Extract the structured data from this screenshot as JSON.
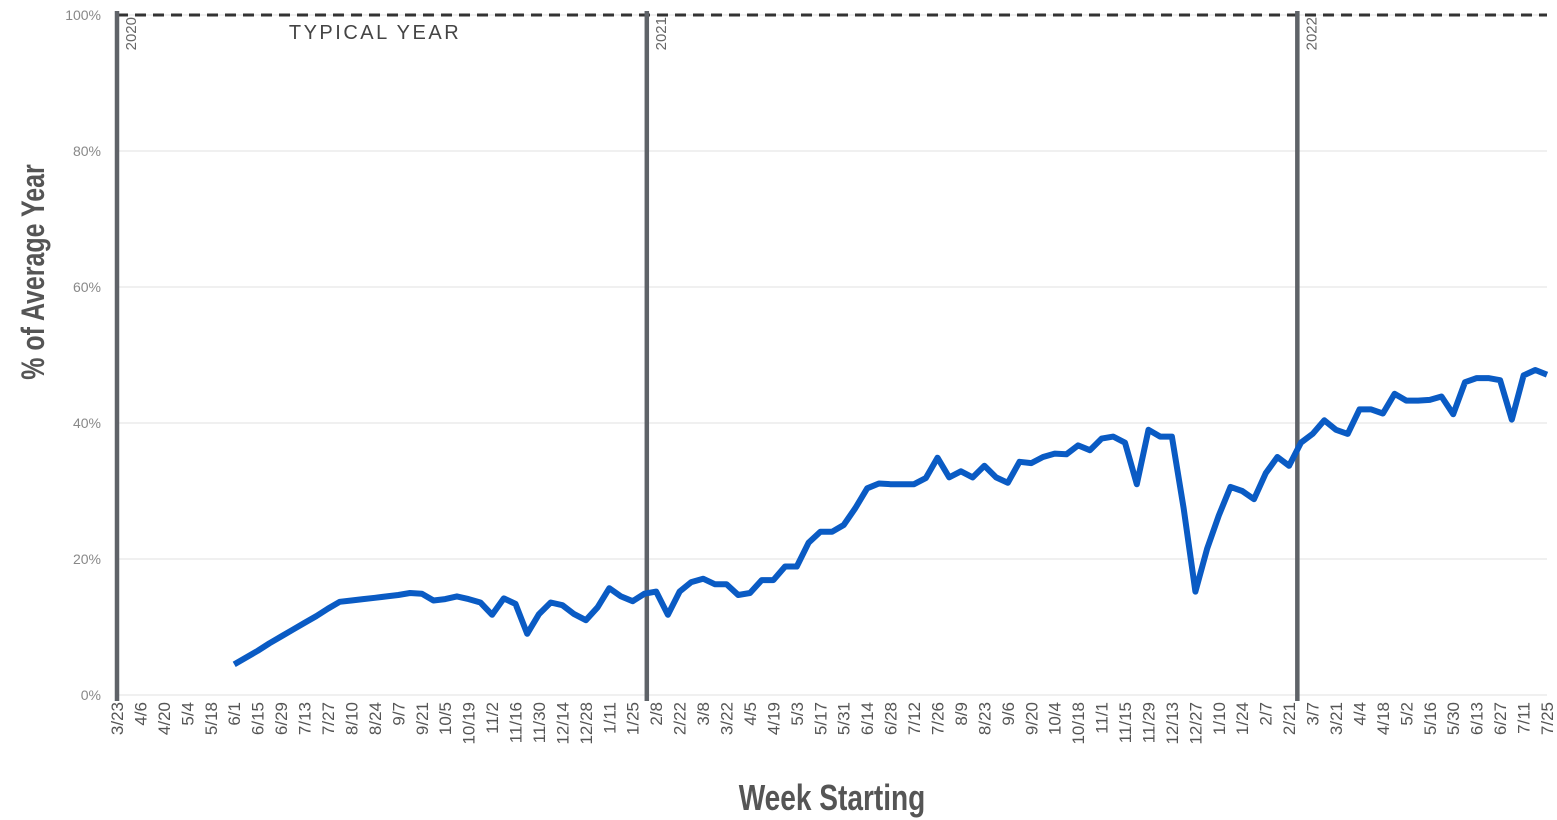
{
  "chart_data": {
    "type": "line",
    "y_label": "% of Average Year",
    "x_label": "Week Starting",
    "categories": [
      "3/23",
      null,
      "4/6",
      null,
      "4/20",
      null,
      "5/4",
      null,
      "5/18",
      null,
      "6/1",
      null,
      "6/15",
      null,
      "6/29",
      null,
      "7/13",
      null,
      "7/27",
      null,
      "8/10",
      null,
      "8/24",
      null,
      "9/7",
      null,
      "9/21",
      null,
      "10/5",
      null,
      "10/19",
      null,
      "11/2",
      null,
      "11/16",
      null,
      "11/30",
      null,
      "12/14",
      null,
      "12/28",
      null,
      "1/11",
      null,
      "1/25",
      null,
      "2/8",
      null,
      "2/22",
      null,
      "3/8",
      null,
      "3/22",
      null,
      "4/5",
      null,
      "4/19",
      null,
      "5/3",
      null,
      "5/17",
      null,
      "5/31",
      null,
      "6/14",
      null,
      "6/28",
      null,
      "7/12",
      null,
      "7/26",
      null,
      "8/9",
      null,
      "8/23",
      null,
      "9/6",
      null,
      "9/20",
      null,
      "10/4",
      null,
      "10/18",
      null,
      "11/1",
      null,
      "11/15",
      null,
      "11/29",
      null,
      "12/13",
      null,
      "12/27",
      null,
      "1/10",
      null,
      "1/24",
      null,
      "2/7",
      null,
      "2/21",
      null,
      "3/7",
      null,
      "3/21",
      null,
      "4/4",
      null,
      "4/18",
      null,
      "5/2",
      null,
      "5/16",
      null,
      "5/30",
      null,
      "6/13",
      null,
      "6/27",
      null,
      "7/11",
      null,
      "7/25"
    ],
    "series": [
      {
        "name": "% of Average Year",
        "color": "#0a5bc4",
        "values": [
          null,
          null,
          null,
          null,
          null,
          null,
          null,
          null,
          null,
          null,
          4.5,
          5.5,
          6.5,
          7.6,
          8.6,
          9.6,
          10.6,
          11.6,
          12.7,
          13.7,
          13.9,
          14.1,
          14.3,
          14.5,
          14.7,
          15.0,
          14.9,
          13.9,
          14.1,
          14.5,
          14.1,
          13.6,
          11.8,
          14.2,
          13.4,
          9.0,
          11.9,
          13.6,
          13.2,
          11.9,
          11.0,
          12.9,
          15.7,
          14.5,
          13.8,
          14.9,
          15.2,
          11.8,
          15.2,
          16.6,
          17.1,
          16.3,
          16.3,
          14.7,
          15.0,
          16.9,
          16.9,
          18.9,
          18.9,
          22.4,
          24.0,
          24.0,
          25.0,
          27.5,
          30.4,
          31.1,
          31.0,
          31.0,
          31.0,
          31.9,
          34.9,
          32.0,
          32.9,
          32.0,
          33.7,
          32.0,
          31.2,
          34.3,
          34.1,
          35.0,
          35.5,
          35.4,
          36.7,
          36.0,
          37.7,
          38.0,
          37.1,
          31.0,
          39.0,
          38.0,
          38.0,
          27.5,
          15.2,
          21.5,
          26.4,
          30.6,
          30.0,
          28.8,
          32.6,
          35.0,
          33.7,
          37.1,
          38.4,
          40.4,
          39.0,
          38.4,
          42.0,
          42.0,
          41.4,
          44.3,
          43.3,
          43.3,
          43.4,
          43.9,
          41.3,
          46.0,
          46.6,
          46.6,
          46.3,
          40.5,
          47.0,
          47.8,
          47.1
        ]
      }
    ],
    "ylim": [
      0,
      100
    ],
    "yticks": [
      {
        "value": 0,
        "label": "0%"
      },
      {
        "value": 20,
        "label": "20%"
      },
      {
        "value": 40,
        "label": "40%"
      },
      {
        "value": 60,
        "label": "60%"
      },
      {
        "value": 80,
        "label": "80%"
      },
      {
        "value": 100,
        "label": "100%"
      }
    ],
    "grid": true,
    "reference_line": {
      "value": 100,
      "label": "TYPICAL YEAR"
    },
    "year_lines": [
      {
        "label": "2020",
        "x": 0
      },
      {
        "label": "2021",
        "x": 45.2
      },
      {
        "label": "2022",
        "x": 100.7
      }
    ]
  }
}
